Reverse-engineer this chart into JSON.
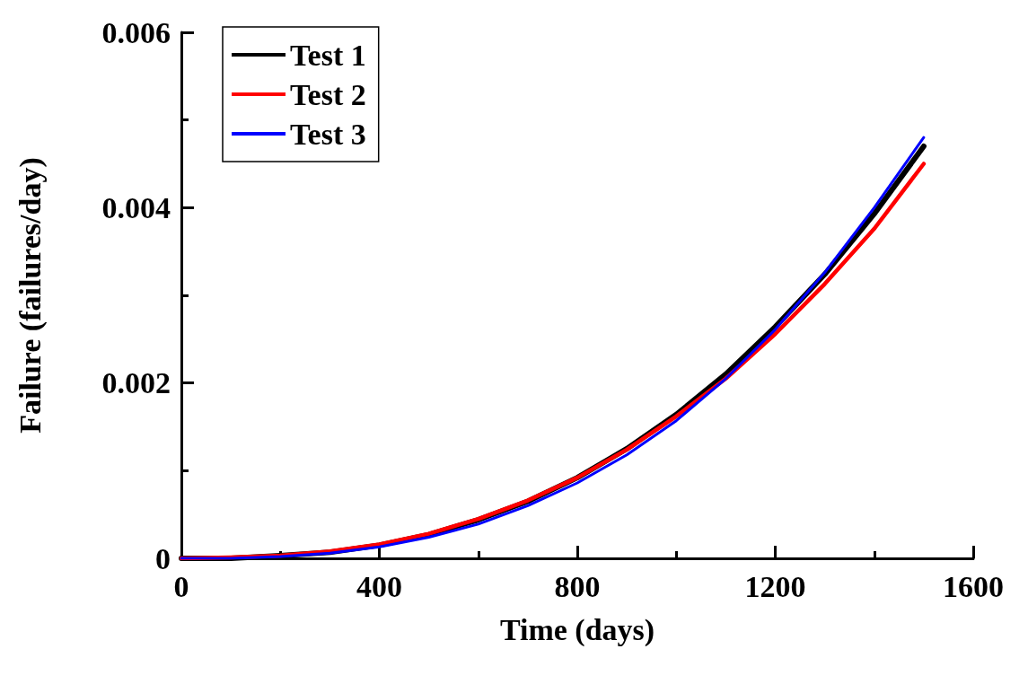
{
  "chart_data": {
    "type": "line",
    "xlabel": "Time (days)",
    "ylabel": "Failure (failures/day)",
    "x": [
      0,
      100,
      200,
      300,
      400,
      500,
      600,
      700,
      800,
      900,
      1000,
      1100,
      1200,
      1300,
      1400,
      1500
    ],
    "series": [
      {
        "name": "Test 1",
        "color": "#000000",
        "values": [
          0,
          0,
          3e-05,
          7e-05,
          0.00015,
          0.00027,
          0.00044,
          0.00065,
          0.00092,
          0.00125,
          0.00164,
          0.0021,
          0.00264,
          0.00324,
          0.00393,
          0.0047
        ]
      },
      {
        "name": "Test 2",
        "color": "#ff0000",
        "values": [
          0,
          1e-05,
          3e-05,
          8e-05,
          0.00016,
          0.00028,
          0.00045,
          0.00066,
          0.00092,
          0.00124,
          0.00162,
          0.00205,
          0.00256,
          0.00313,
          0.00376,
          0.0045
        ]
      },
      {
        "name": "Test 3",
        "color": "#0000ff",
        "values": [
          0,
          0,
          2e-05,
          6e-05,
          0.00013,
          0.00024,
          0.00039,
          0.0006,
          0.00086,
          0.00118,
          0.00157,
          0.00205,
          0.00261,
          0.00326,
          0.004,
          0.0048
        ]
      }
    ],
    "xlim": [
      0,
      1600
    ],
    "xticks": [
      0,
      400,
      800,
      1200,
      1600
    ],
    "ylim": [
      0,
      0.006
    ],
    "yticks": [
      0,
      0.002,
      0.004,
      0.006
    ],
    "grid": false,
    "legend": "top left",
    "marker": "none",
    "line_style": "solid"
  }
}
